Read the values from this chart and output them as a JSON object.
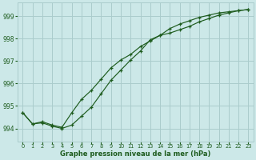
{
  "title": "Graphe pression niveau de la mer (hPa)",
  "background_color": "#cce8e8",
  "grid_color": "#aacccc",
  "line_color": "#1e5c1e",
  "xlim": [
    -0.5,
    23.5
  ],
  "ylim": [
    993.4,
    999.6
  ],
  "yticks": [
    994,
    995,
    996,
    997,
    998,
    999
  ],
  "xticks": [
    0,
    1,
    2,
    3,
    4,
    5,
    6,
    7,
    8,
    9,
    10,
    11,
    12,
    13,
    14,
    15,
    16,
    17,
    18,
    19,
    20,
    21,
    22,
    23
  ],
  "line1_x": [
    0,
    1,
    2,
    3,
    4,
    5,
    6,
    7,
    8,
    9,
    10,
    11,
    12,
    13,
    14,
    15,
    16,
    17,
    18,
    19,
    20,
    21,
    22,
    23
  ],
  "line1_y": [
    994.7,
    994.2,
    994.25,
    994.1,
    994.0,
    994.15,
    994.55,
    994.95,
    995.55,
    996.15,
    996.6,
    997.05,
    997.45,
    997.95,
    998.15,
    998.45,
    998.65,
    998.8,
    998.95,
    999.05,
    999.15,
    999.2,
    999.25,
    999.3
  ],
  "line2_x": [
    0,
    1,
    2,
    3,
    4,
    5,
    6,
    7,
    8,
    9,
    10,
    11,
    12,
    13,
    14,
    15,
    16,
    17,
    18,
    19,
    20,
    21,
    22,
    23
  ],
  "line2_y": [
    994.7,
    994.2,
    994.3,
    994.15,
    994.05,
    994.7,
    995.3,
    995.7,
    996.2,
    996.7,
    997.05,
    997.3,
    997.65,
    997.9,
    998.15,
    998.25,
    998.4,
    998.55,
    998.75,
    998.9,
    999.05,
    999.15,
    999.25,
    999.3
  ]
}
